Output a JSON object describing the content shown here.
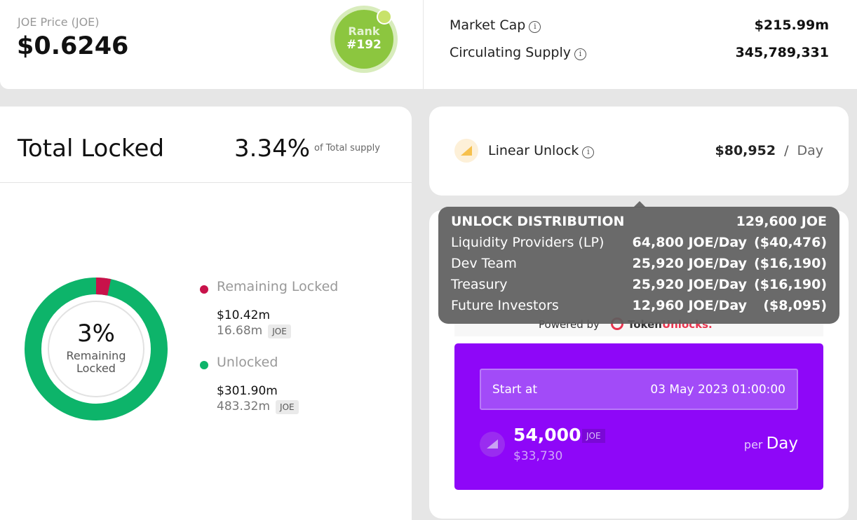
{
  "price": {
    "label": "JOE Price (JOE)",
    "value": "$0.6246",
    "rank_label": "Rank",
    "rank": "#192"
  },
  "market": {
    "market_cap_label": "Market Cap",
    "market_cap": "$215.99m",
    "supply_label": "Circulating Supply",
    "supply": "345,789,331"
  },
  "total_locked": {
    "title": "Total Locked",
    "percent": {
      "value": 3.34,
      "label": "3.34%"
    },
    "percent_note": "of Total supply",
    "center_value": "3%",
    "center_line1": "Remaining",
    "center_line2": "Locked",
    "legend": [
      {
        "name": "Remaining Locked",
        "usd": "$10.42m",
        "amount": "16.68m",
        "unit": "JOE"
      },
      {
        "name": "Unlocked",
        "usd": "$301.90m",
        "amount": "483.32m",
        "unit": "JOE"
      }
    ]
  },
  "linear_unlock": {
    "label": "Linear Unlock",
    "value": "$80,952",
    "sep": "/",
    "per": "Day"
  },
  "tooltip": {
    "title": "UNLOCK DISTRIBUTION",
    "total": "129,600 JOE",
    "rows": [
      [
        "Liquidity Providers (LP)",
        "64,800 JOE/Day",
        "($40,476)"
      ],
      [
        "Dev Team",
        "25,920 JOE/Day",
        "($16,190)"
      ],
      [
        "Treasury",
        "25,920 JOE/Day",
        "($16,190)"
      ],
      [
        "Future Investors",
        "12,960 JOE/Day",
        "($8,095)"
      ]
    ]
  },
  "powered": {
    "prefix": "Powered by",
    "brand1": "Token",
    "brand2": "Unlocks."
  },
  "schedule": {
    "start_label": "Start at",
    "start": "03 May 2023 01:00:00",
    "amount": "54,000",
    "unit": "JOE",
    "usd": "$33,730",
    "per": "per",
    "period": "Day"
  }
}
